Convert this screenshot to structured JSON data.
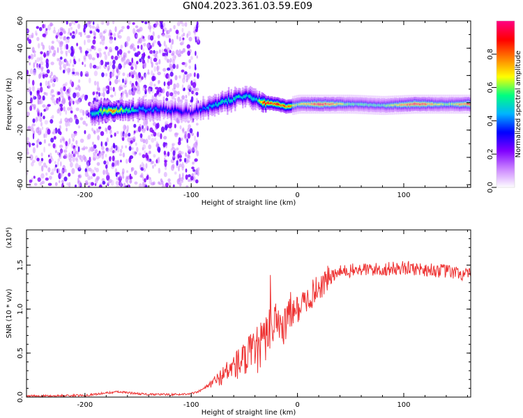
{
  "title": "GN04.2023.361.03.59.E09",
  "chart_data": [
    {
      "type": "heatmap",
      "xlabel": "Height of straight line (km)",
      "ylabel": "Frequency (Hz)",
      "xlim": [
        -255,
        163
      ],
      "ylim": [
        -62,
        60
      ],
      "xticks": [
        -200,
        -100,
        0,
        100
      ],
      "yticks": [
        60,
        40,
        20,
        0,
        -20,
        -40,
        -60
      ],
      "colorbar": {
        "label": "Normalized spectral amplitude",
        "range": [
          0,
          1
        ],
        "ticks": [
          "0.0",
          "0.2",
          "0.4",
          "0.6",
          "0.8"
        ],
        "colors": [
          "#ffffff",
          "#cc88ff",
          "#8000ff",
          "#0000ff",
          "#00b4ff",
          "#00ff80",
          "#ffff00",
          "#ff8000",
          "#ff0000",
          "#ff0080"
        ]
      },
      "ridge": {
        "x": [
          -195,
          -175,
          -150,
          -125,
          -100,
          -90,
          -75,
          -60,
          -50,
          -40,
          -30,
          -20,
          -10,
          0,
          20,
          50,
          80,
          110,
          140,
          163
        ],
        "frequency": [
          -7,
          -6,
          -5,
          -5,
          -7,
          -4,
          -1,
          3,
          5,
          2,
          0,
          -1,
          -3,
          -1,
          -1,
          -1,
          -2,
          -1,
          -1,
          -1
        ],
        "peak_amplitude": [
          0.45,
          0.8,
          0.45,
          0.4,
          0.3,
          0.4,
          0.5,
          0.55,
          0.5,
          0.5,
          0.95,
          0.9,
          0.85,
          0.6,
          0.95,
          0.55,
          0.55,
          0.95,
          0.6,
          0.9
        ]
      },
      "noise_region_x": [
        -255,
        -93
      ]
    },
    {
      "type": "line",
      "xlabel": "Height of straight line (km)",
      "ylabel": "SNR (10 * v/v)",
      "yscale_label": "(x10⁴)",
      "xlim": [
        -255,
        163
      ],
      "ylim": [
        0,
        1.9
      ],
      "xticks": [
        -200,
        -100,
        0,
        100
      ],
      "yticks": [
        "0.0",
        "0.5",
        "1.0",
        "1.5"
      ],
      "line_color": "#ee3333",
      "series": [
        {
          "x": [
            -255,
            -200,
            -170,
            -140,
            -110,
            -95,
            -85,
            -70,
            -60,
            -50,
            -40,
            -30,
            -25,
            -20,
            -15,
            -10,
            -5,
            0,
            10,
            20,
            30,
            40,
            60,
            80,
            100,
            120,
            140,
            163
          ],
          "y": [
            0.01,
            0.02,
            0.06,
            0.03,
            0.03,
            0.05,
            0.12,
            0.25,
            0.35,
            0.42,
            0.5,
            0.65,
            0.8,
            0.95,
            0.8,
            0.85,
            0.95,
            1.0,
            1.12,
            1.25,
            1.35,
            1.42,
            1.45,
            1.45,
            1.47,
            1.45,
            1.43,
            1.38
          ]
        }
      ]
    }
  ]
}
